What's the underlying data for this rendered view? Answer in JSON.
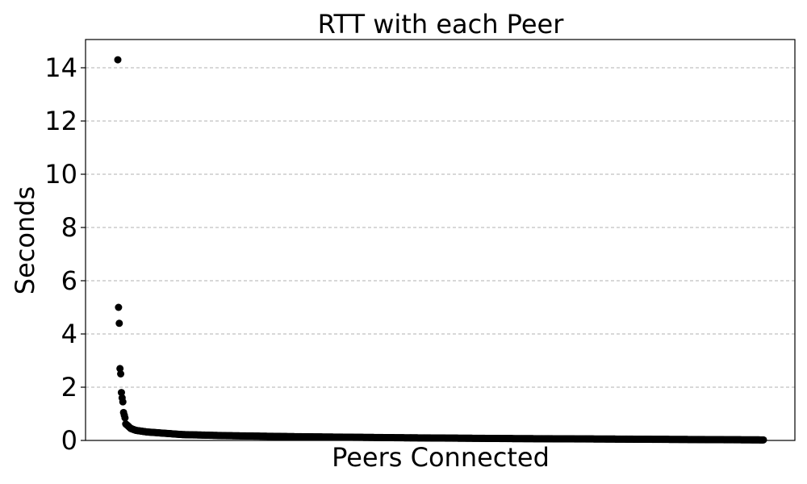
{
  "chart_data": {
    "type": "scatter",
    "title": "RTT with each Peer",
    "xlabel": "Peers Connected",
    "ylabel": "Seconds",
    "ylim": [
      0,
      15
    ],
    "y_ticks": [
      0,
      2,
      4,
      6,
      8,
      10,
      12,
      14
    ],
    "x_ticks": [],
    "grid": "y-dashed",
    "marker_color": "#000000",
    "series": [
      {
        "values_description_free": true,
        "x_count": 900,
        "key_points": [
          {
            "x": 0,
            "y": 14.3
          },
          {
            "x": 1,
            "y": 5.0
          },
          {
            "x": 2,
            "y": 4.4
          },
          {
            "x": 3,
            "y": 2.7
          },
          {
            "x": 4,
            "y": 2.5
          },
          {
            "x": 5,
            "y": 1.8
          },
          {
            "x": 6,
            "y": 1.6
          },
          {
            "x": 7,
            "y": 1.45
          },
          {
            "x": 8,
            "y": 1.05
          },
          {
            "x": 9,
            "y": 0.95
          },
          {
            "x": 10,
            "y": 0.85
          },
          {
            "x": 11,
            "y": 0.62
          },
          {
            "x": 14,
            "y": 0.55
          },
          {
            "x": 18,
            "y": 0.45
          },
          {
            "x": 25,
            "y": 0.38
          },
          {
            "x": 40,
            "y": 0.32
          },
          {
            "x": 60,
            "y": 0.28
          },
          {
            "x": 90,
            "y": 0.22
          },
          {
            "x": 150,
            "y": 0.18
          },
          {
            "x": 250,
            "y": 0.14
          },
          {
            "x": 400,
            "y": 0.1
          },
          {
            "x": 550,
            "y": 0.07
          },
          {
            "x": 700,
            "y": 0.05
          },
          {
            "x": 899,
            "y": 0.02
          }
        ]
      }
    ]
  }
}
